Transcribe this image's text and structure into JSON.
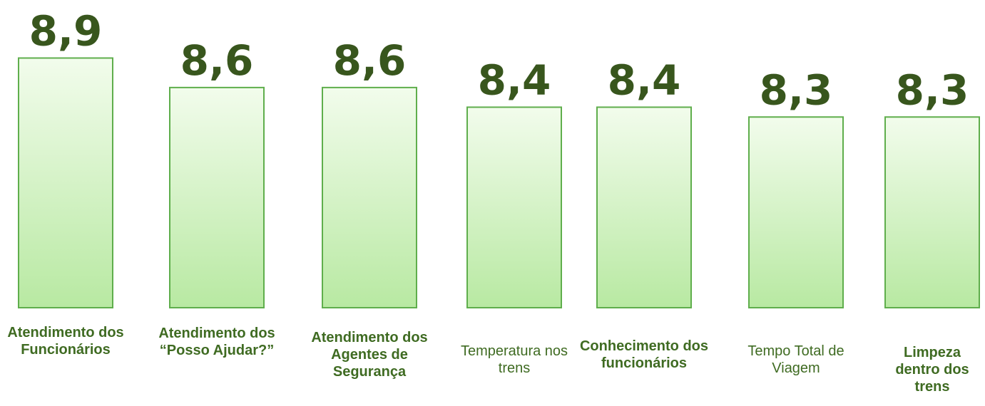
{
  "chart_data": {
    "type": "bar",
    "categories": [
      "Atendimento dos Funcionários",
      "Atendimento dos “Posso Ajudar?”",
      "Atendimento dos Agentes de Segurança",
      "Temperatura nos trens",
      "Conhecimento dos funcionários",
      "Tempo Total de Viagem",
      "Limpeza dentro dos trens"
    ],
    "category_bold": [
      true,
      true,
      true,
      false,
      true,
      false,
      true
    ],
    "values": [
      8.9,
      8.6,
      8.6,
      8.4,
      8.4,
      8.3,
      8.3
    ],
    "value_labels": [
      "8,9",
      "8,6",
      "8,6",
      "8,4",
      "8,4",
      "8,3",
      "8,3"
    ],
    "color": "#b8e9a2"
  }
}
